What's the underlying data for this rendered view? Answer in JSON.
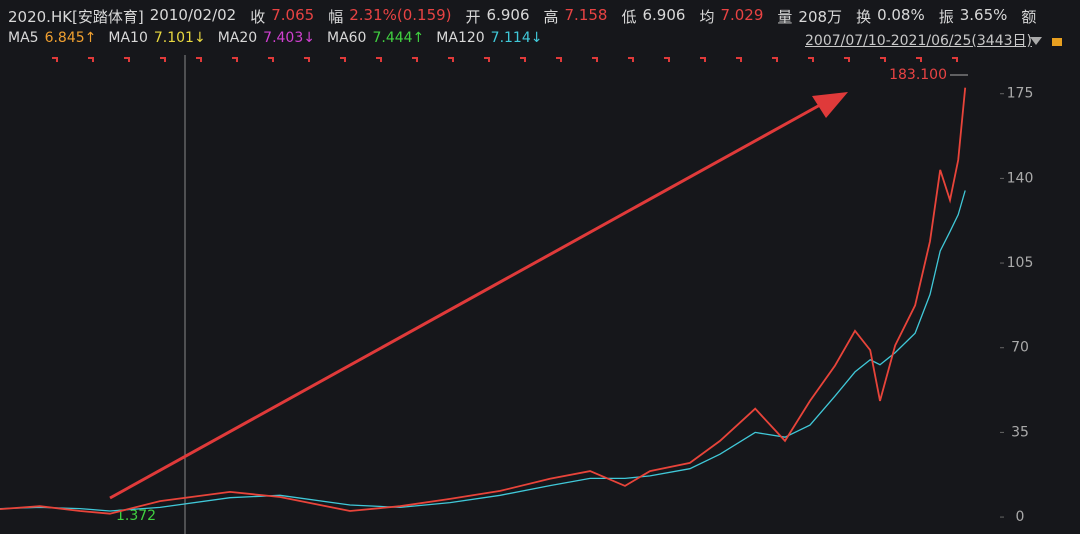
{
  "chart_data": {
    "type": "line",
    "header": [
      {
        "text": "2020.HK[安踏体育]",
        "color": "#d8d8d8"
      },
      {
        "text": "2010/02/02",
        "color": "#d8d8d8"
      },
      {
        "text": "收",
        "color": "#d8d8d8"
      },
      {
        "text": "7.065",
        "color": "#e84343"
      },
      {
        "text": "幅",
        "color": "#d8d8d8"
      },
      {
        "text": "2.31%(0.159)",
        "color": "#e84343"
      },
      {
        "text": "开",
        "color": "#d8d8d8"
      },
      {
        "text": "6.906",
        "color": "#d8d8d8"
      },
      {
        "text": "高",
        "color": "#d8d8d8"
      },
      {
        "text": "7.158",
        "color": "#e84343"
      },
      {
        "text": "低",
        "color": "#d8d8d8"
      },
      {
        "text": "6.906",
        "color": "#d8d8d8"
      },
      {
        "text": "均",
        "color": "#d8d8d8"
      },
      {
        "text": "7.029",
        "color": "#e84343"
      },
      {
        "text": "量",
        "color": "#d8d8d8"
      },
      {
        "text": "208万",
        "color": "#d8d8d8"
      },
      {
        "text": "换",
        "color": "#d8d8d8"
      },
      {
        "text": "0.08%",
        "color": "#d8d8d8"
      },
      {
        "text": "振",
        "color": "#d8d8d8"
      },
      {
        "text": "3.65%",
        "color": "#d8d8d8"
      },
      {
        "text": "额",
        "color": "#d8d8d8"
      }
    ],
    "range_label": "2007/07/10-2021/06/25(3443日)",
    "x": [
      0,
      142,
      285,
      391,
      569,
      818,
      996,
      1245,
      1423,
      1601,
      1779,
      1956,
      2099,
      2223,
      2312,
      2454,
      2561,
      2686,
      2792,
      2881,
      2970,
      3041,
      3095,
      3130,
      3184,
      3255,
      3308,
      3344,
      3379,
      3408,
      3433
    ],
    "values": [
      3.3,
      4.5,
      2.5,
      1.4,
      6.6,
      10.4,
      8.3,
      2.5,
      4.5,
      7.5,
      10.8,
      15.8,
      19,
      12.9,
      19,
      22.4,
      31.5,
      44.8,
      31.5,
      48,
      62.6,
      77,
      69,
      48,
      71,
      87.5,
      114,
      143.5,
      131,
      147.6,
      177.5
    ],
    "color": "#e8443a",
    "series": [
      {
        "name": "MA5",
        "value_label": "6.845↑",
        "color": "#f0a030"
      },
      {
        "name": "MA10",
        "value_label": "7.101↓",
        "color": "#e8d840"
      },
      {
        "name": "MA20",
        "value_label": "7.403↓",
        "color": "#d040d0"
      },
      {
        "name": "MA60",
        "value_label": "7.444↑",
        "color": "#40d040"
      },
      {
        "name": "MA120",
        "value_label": "7.114↓",
        "color": "#40c8d8",
        "values": [
          3.5,
          4,
          3.5,
          2.5,
          4,
          8,
          9,
          5,
          4,
          6,
          9,
          13,
          16,
          16,
          17,
          20,
          26,
          35,
          33,
          38,
          50,
          60,
          65,
          63,
          68,
          76,
          92,
          110,
          118,
          125,
          135
        ]
      }
    ],
    "xlim": [
      0,
      3443
    ],
    "ylim": [
      -7,
      191
    ],
    "yticks": [
      0,
      35,
      70,
      105,
      140,
      175
    ],
    "annotations": [
      "183.100",
      "1.372"
    ]
  }
}
